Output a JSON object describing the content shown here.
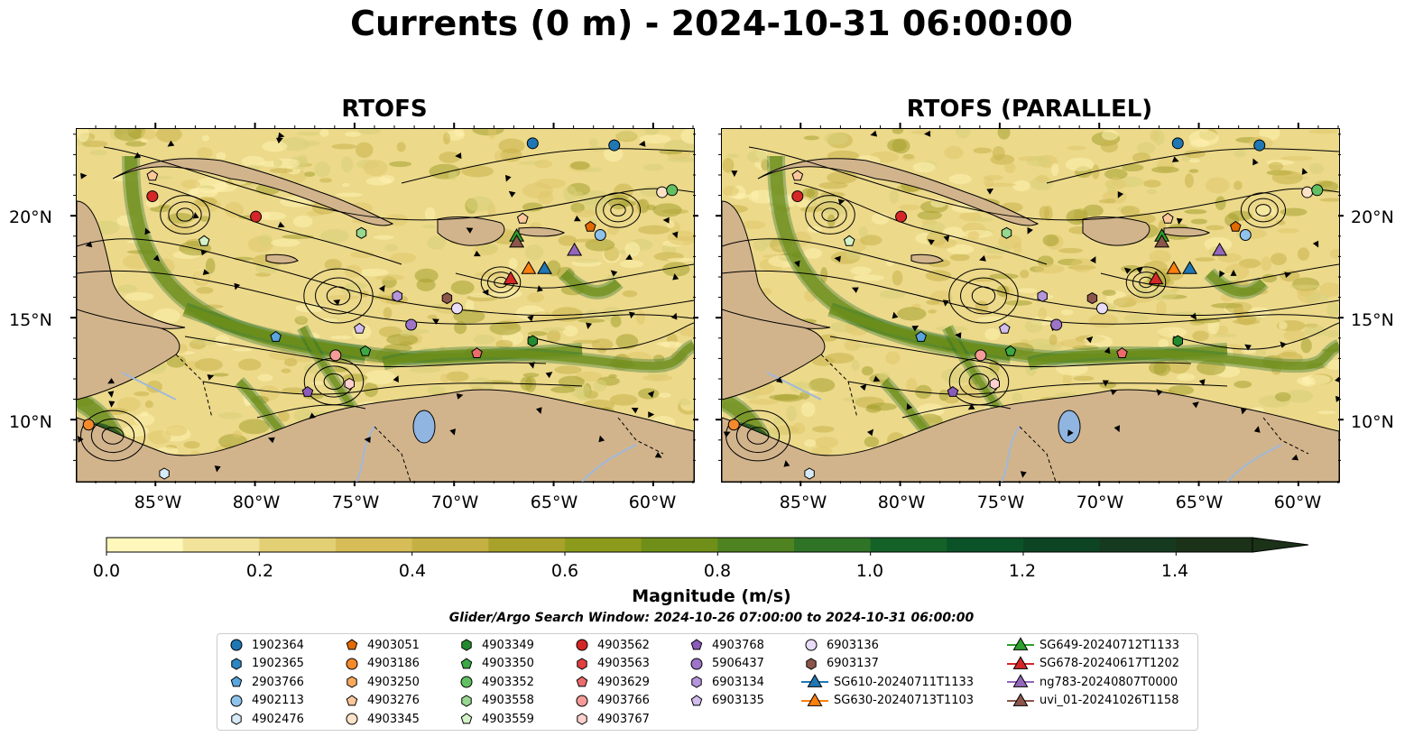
{
  "title": "Currents (0 m) - 2024-10-31 06:00:00",
  "panels": [
    {
      "title": "RTOFS"
    },
    {
      "title": "RTOFS (PARALLEL)"
    }
  ],
  "lon_ticks": [
    "85°W",
    "80°W",
    "75°W",
    "70°W",
    "65°W",
    "60°W"
  ],
  "lat_ticks": [
    "20°N",
    "15°N",
    "10°N"
  ],
  "extent": {
    "lon": [
      -89,
      -58
    ],
    "lat": [
      7,
      24.3
    ]
  },
  "colorbar": {
    "label": "Magnitude (m/s)",
    "ticks": [
      "0.0",
      "0.2",
      "0.4",
      "0.6",
      "0.8",
      "1.0",
      "1.2",
      "1.4"
    ],
    "range": [
      0,
      1.5
    ],
    "extend": "max",
    "colors": [
      "#fff7bc",
      "#f1e39a",
      "#e3cf74",
      "#d6bd57",
      "#c5b044",
      "#a9a22a",
      "#8d9b1c",
      "#6f8f18",
      "#4f8220",
      "#2f7426",
      "#146228",
      "#0b5228",
      "#0d4424",
      "#153a1f",
      "#1b3219"
    ]
  },
  "search_window": "Glider/Argo Search Window: 2024-10-26 07:00:00 to 2024-10-31 06:00:00",
  "legend": {
    "items": [
      {
        "label": "1902364",
        "marker": "circle",
        "color": "#1f77b4"
      },
      {
        "label": "1902365",
        "marker": "hexagon",
        "color": "#2b86c1"
      },
      {
        "label": "2903766",
        "marker": "pentagon",
        "color": "#5aa5dd"
      },
      {
        "label": "4902113",
        "marker": "circle",
        "color": "#8ec3ec"
      },
      {
        "label": "4902476",
        "marker": "hexagon",
        "color": "#d6eaf8"
      },
      {
        "label": "4903051",
        "marker": "pentagon",
        "color": "#e36a00"
      },
      {
        "label": "4903186",
        "marker": "circle",
        "color": "#f58a2c"
      },
      {
        "label": "4903250",
        "marker": "hexagon",
        "color": "#f9a85c"
      },
      {
        "label": "4903276",
        "marker": "pentagon",
        "color": "#fbc79b"
      },
      {
        "label": "4903345",
        "marker": "circle",
        "color": "#fde2c8"
      },
      {
        "label": "4903349",
        "marker": "hexagon",
        "color": "#238b2e"
      },
      {
        "label": "4903350",
        "marker": "pentagon",
        "color": "#3ca845"
      },
      {
        "label": "4903352",
        "marker": "circle",
        "color": "#62c062"
      },
      {
        "label": "4903558",
        "marker": "hexagon",
        "color": "#96d88f"
      },
      {
        "label": "4903559",
        "marker": "pentagon",
        "color": "#d4f2c8"
      },
      {
        "label": "4903562",
        "marker": "circle",
        "color": "#d62728"
      },
      {
        "label": "4903563",
        "marker": "hexagon",
        "color": "#e04040"
      },
      {
        "label": "4903629",
        "marker": "pentagon",
        "color": "#ec6b6b"
      },
      {
        "label": "4903766",
        "marker": "circle",
        "color": "#f59c98"
      },
      {
        "label": "4903767",
        "marker": "hexagon",
        "color": "#fcd0cc"
      },
      {
        "label": "4903768",
        "marker": "pentagon",
        "color": "#8a5bb8"
      },
      {
        "label": "5906437",
        "marker": "circle",
        "color": "#9d74c8"
      },
      {
        "label": "6903134",
        "marker": "hexagon",
        "color": "#b596dc"
      },
      {
        "label": "6903135",
        "marker": "pentagon",
        "color": "#d2bdee"
      },
      {
        "label": "6903136",
        "marker": "circle",
        "color": "#e8dcf7"
      },
      {
        "label": "6903137",
        "marker": "hexagon",
        "color": "#8c564b"
      },
      {
        "label": "SG610-20240711T1133",
        "marker": "triangle",
        "color": "#1f77b4"
      },
      {
        "label": "SG630-20240713T1103",
        "marker": "triangle",
        "color": "#ff7f0e"
      },
      {
        "label": "SG649-20240712T1133",
        "marker": "triangle",
        "color": "#2ca02c"
      },
      {
        "label": "SG678-20240617T1202",
        "marker": "triangle",
        "color": "#d62728"
      },
      {
        "label": "ng783-20240807T0000",
        "marker": "triangle",
        "color": "#9467bd"
      },
      {
        "label": "uvi_01-20241026T1158",
        "marker": "triangle",
        "color": "#8c564b"
      }
    ]
  },
  "floats": [
    {
      "id": "1902364",
      "lon": -66.1,
      "lat": 23.6
    },
    {
      "id": "1902364",
      "lon": -62.0,
      "lat": 23.5
    },
    {
      "id": "4903186",
      "lon": -88.4,
      "lat": 9.8
    },
    {
      "id": "4902476",
      "lon": -84.6,
      "lat": 7.4
    },
    {
      "id": "4903276",
      "lon": -85.2,
      "lat": 22.0
    },
    {
      "id": "4903562",
      "lon": -85.2,
      "lat": 21.0
    },
    {
      "id": "4903562",
      "lon": -80.0,
      "lat": 20.0
    },
    {
      "id": "4903559",
      "lon": -82.6,
      "lat": 18.8
    },
    {
      "id": "4903558",
      "lon": -74.7,
      "lat": 19.2
    },
    {
      "id": "4903276",
      "lon": -66.6,
      "lat": 19.9
    },
    {
      "id": "4903051",
      "lon": -63.2,
      "lat": 19.5
    },
    {
      "id": "4902113",
      "lon": -62.7,
      "lat": 19.1
    },
    {
      "id": "4903345",
      "lon": -59.6,
      "lat": 21.2
    },
    {
      "id": "4903352",
      "lon": -59.1,
      "lat": 21.3
    },
    {
      "id": "6903134",
      "lon": -72.9,
      "lat": 16.1
    },
    {
      "id": "6903137",
      "lon": -70.4,
      "lat": 16.0
    },
    {
      "id": "6903136",
      "lon": -69.9,
      "lat": 15.5
    },
    {
      "id": "5906437",
      "lon": -72.2,
      "lat": 14.7
    },
    {
      "id": "6903135",
      "lon": -74.8,
      "lat": 14.5
    },
    {
      "id": "2903766",
      "lon": -79.0,
      "lat": 14.1
    },
    {
      "id": "4903350",
      "lon": -74.5,
      "lat": 13.4
    },
    {
      "id": "4903349",
      "lon": -66.1,
      "lat": 13.9
    },
    {
      "id": "4903629",
      "lon": -68.9,
      "lat": 13.3
    },
    {
      "id": "4903766",
      "lon": -76.0,
      "lat": 13.2
    },
    {
      "id": "4903767",
      "lon": -75.3,
      "lat": 11.8
    },
    {
      "id": "4903768",
      "lon": -77.4,
      "lat": 11.4
    }
  ],
  "gliders": [
    {
      "id": "SG649-20240712T1133",
      "lon": -66.9,
      "lat": 19.0
    },
    {
      "id": "uvi_01-20241026T1158",
      "lon": -66.9,
      "lat": 18.7
    },
    {
      "id": "ng783-20240807T0000",
      "lon": -64.0,
      "lat": 18.3
    },
    {
      "id": "SG630-20240713T1103",
      "lon": -66.3,
      "lat": 17.4
    },
    {
      "id": "SG610-20240711T1133",
      "lon": -65.5,
      "lat": 17.4
    },
    {
      "id": "SG678-20240617T1202",
      "lon": -67.2,
      "lat": 16.9
    }
  ]
}
